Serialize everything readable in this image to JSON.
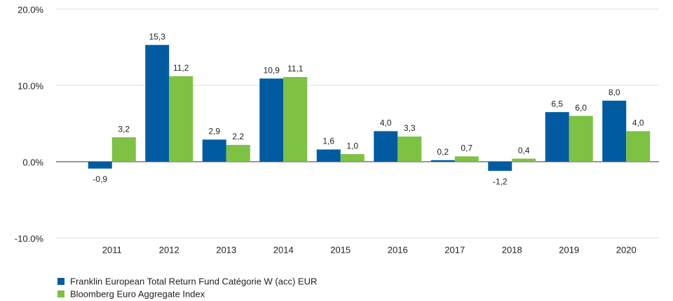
{
  "chart_data": {
    "type": "bar",
    "categories": [
      "2011",
      "2012",
      "2013",
      "2014",
      "2015",
      "2016",
      "2017",
      "2018",
      "2019",
      "2020"
    ],
    "series": [
      {
        "name": "Franklin European Total Return Fund Catégorie W (acc) EUR",
        "color": "#005ba1",
        "values": [
          -0.9,
          15.3,
          2.9,
          10.9,
          1.6,
          4.0,
          0.2,
          -1.2,
          6.5,
          8.0
        ],
        "value_labels": [
          "-0,9",
          "15,3",
          "2,9",
          "10,9",
          "1,6",
          "4,0",
          "0,2",
          "-1,2",
          "6,5",
          "8,0"
        ]
      },
      {
        "name": "Bloomberg Euro Aggregate Index",
        "color": "#7dc242",
        "values": [
          3.2,
          11.2,
          2.2,
          11.1,
          1.0,
          3.3,
          0.7,
          0.4,
          6.0,
          4.0
        ],
        "value_labels": [
          "3,2",
          "11,2",
          "2,2",
          "11,1",
          "1,0",
          "3,3",
          "0,7",
          "0,4",
          "6,0",
          "4,0"
        ]
      }
    ],
    "ylim": [
      -10,
      20
    ],
    "yticks": [
      {
        "value": -10,
        "label": "-10.0%"
      },
      {
        "value": 0,
        "label": "0.0%"
      },
      {
        "value": 10,
        "label": "10.0%"
      },
      {
        "value": 20,
        "label": "20.0%"
      }
    ],
    "grid": true
  }
}
